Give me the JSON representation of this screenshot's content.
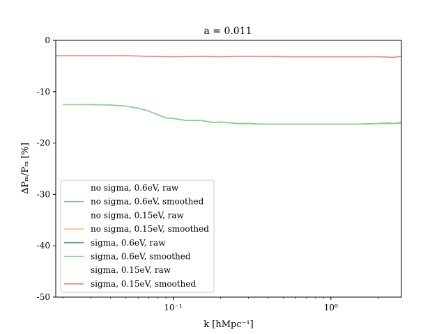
{
  "chart_data": {
    "type": "line",
    "title": "a = 0.011",
    "xlabel": "k [hMpc⁻¹]",
    "ylabel": "ΔPₘ/Pₘ [%]",
    "xscale": "log",
    "xlim": [
      0.018,
      2.8
    ],
    "ylim": [
      -50,
      0
    ],
    "yticks": [
      0,
      -10,
      -20,
      -30,
      -40,
      -50
    ],
    "ytick_labels": [
      "0",
      "-10",
      "-20",
      "-30",
      "-40",
      "-50"
    ],
    "xticks": [
      0.1,
      1.0
    ],
    "xtick_labels": [
      "10⁻¹",
      "10⁰"
    ],
    "grid": false,
    "legend_position": "lower-left",
    "series": [
      {
        "name": "no sigma, 0.6eV, raw",
        "color": "#1f77b4",
        "style": "none",
        "x": [],
        "y": []
      },
      {
        "name": "no sigma, 0.6eV, smoothed",
        "color": "#7fb0d8",
        "style": "line",
        "x": [],
        "y": []
      },
      {
        "name": "no sigma, 0.15eV, raw",
        "color": "#ff7f0e",
        "style": "none",
        "x": [],
        "y": []
      },
      {
        "name": "no sigma, 0.15eV, smoothed",
        "color": "#ffbe7d",
        "style": "line",
        "x": [],
        "y": []
      },
      {
        "name": "sigma, 0.6eV, raw",
        "color": "#5aa882",
        "style": "line",
        "x": [
          0.02,
          0.03,
          0.04,
          0.05,
          0.06,
          0.07,
          0.08,
          0.09,
          0.1,
          0.12,
          0.15,
          0.18,
          0.2,
          0.22,
          0.25,
          0.3,
          0.35,
          0.4,
          0.5,
          0.7,
          1.0,
          1.5,
          2.0,
          2.3,
          2.5,
          2.8
        ],
        "y": [
          -12.5,
          -12.5,
          -12.6,
          -12.8,
          -13.2,
          -13.8,
          -14.5,
          -15.1,
          -15.2,
          -15.6,
          -15.6,
          -16.0,
          -15.9,
          -16.0,
          -16.2,
          -16.2,
          -16.3,
          -16.3,
          -16.3,
          -16.3,
          -16.3,
          -16.3,
          -16.2,
          -16.1,
          -16.2,
          -16.0
        ]
      },
      {
        "name": "sigma, 0.6eV, smoothed",
        "color": "#8fcf8a",
        "style": "line",
        "x": [
          0.02,
          0.03,
          0.04,
          0.05,
          0.06,
          0.07,
          0.08,
          0.09,
          0.1,
          0.12,
          0.15,
          0.18,
          0.2,
          0.22,
          0.25,
          0.3,
          0.35,
          0.4,
          0.5,
          0.7,
          1.0,
          1.5,
          2.0,
          2.5,
          2.8
        ],
        "y": [
          -12.5,
          -12.5,
          -12.6,
          -12.8,
          -13.2,
          -13.8,
          -14.5,
          -15.1,
          -15.2,
          -15.6,
          -15.6,
          -16.0,
          -15.9,
          -16.0,
          -16.2,
          -16.2,
          -16.3,
          -16.3,
          -16.3,
          -16.3,
          -16.3,
          -16.3,
          -16.2,
          -16.2,
          -16.1
        ]
      },
      {
        "name": "sigma, 0.15eV, raw",
        "color": "#d62728",
        "style": "none",
        "x": [],
        "y": []
      },
      {
        "name": "sigma, 0.15eV, smoothed",
        "color": "#ee8577",
        "style": "line",
        "x": [
          0.018,
          0.03,
          0.05,
          0.07,
          0.1,
          0.15,
          0.2,
          0.25,
          0.3,
          0.4,
          0.5,
          0.7,
          1.0,
          1.5,
          2.0,
          2.5,
          2.8
        ],
        "y": [
          -3.0,
          -3.0,
          -3.0,
          -3.1,
          -3.2,
          -3.1,
          -3.2,
          -3.1,
          -3.1,
          -3.1,
          -3.2,
          -3.2,
          -3.2,
          -3.2,
          -3.2,
          -3.3,
          -3.1
        ]
      }
    ]
  }
}
